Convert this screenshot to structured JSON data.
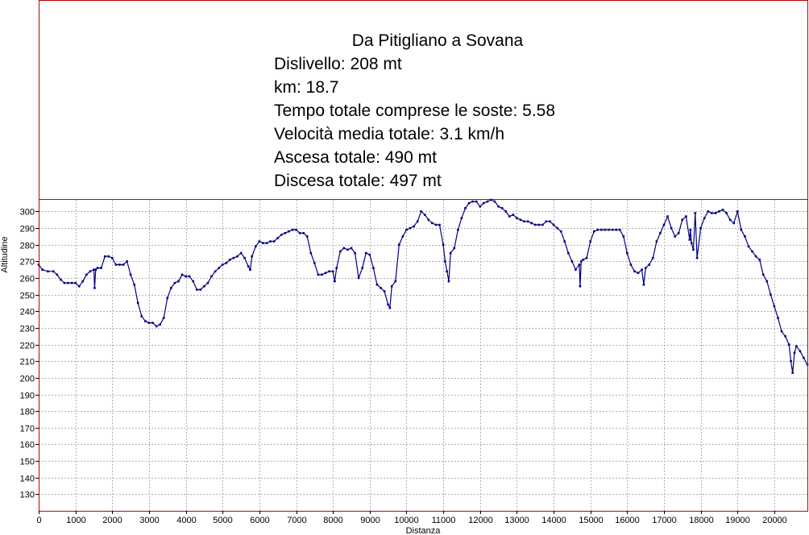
{
  "chart_data": {
    "type": "line",
    "title": "Da Pitigliano a Sovana",
    "stats": [
      "Dislivello: 208 mt",
      "km: 18.7",
      "Tempo totale comprese le soste: 5.58",
      "Velocità media totale: 3.1 km/h",
      "Ascesa totale: 490 mt",
      "Discesa totale: 497 mt"
    ],
    "xlabel": "Distanza",
    "ylabel": "Altitudine",
    "xlim": [
      0,
      20900
    ],
    "ylim": [
      120,
      307
    ],
    "xticks": [
      "0",
      "1000",
      "2000",
      "3000",
      "4000",
      "5000",
      "6000",
      "7000",
      "8000",
      "9000",
      "10000",
      "11000",
      "12000",
      "13000",
      "14000",
      "15000",
      "16000",
      "17000",
      "18000",
      "19000",
      "20000"
    ],
    "yticks": [
      "130",
      "140",
      "150",
      "160",
      "170",
      "180",
      "190",
      "200",
      "210",
      "220",
      "230",
      "240",
      "250",
      "260",
      "270",
      "280",
      "290",
      "300"
    ],
    "grid": true,
    "colors": {
      "line": "#000080",
      "frame": "#c00000",
      "grid": "#b0b0b0"
    },
    "series": [
      {
        "x": [
          0,
          100,
          250,
          400,
          500,
          600,
          700,
          800,
          900,
          1000,
          1100,
          1200,
          1300,
          1400,
          1500,
          1520,
          1550,
          1600,
          1700,
          1800,
          1900,
          2000,
          2100,
          2200,
          2300,
          2400,
          2500,
          2600,
          2700,
          2800,
          2900,
          3000,
          3100,
          3200,
          3300,
          3400,
          3500,
          3600,
          3700,
          3800,
          3900,
          4000,
          4100,
          4200,
          4300,
          4400,
          4500,
          4600,
          4700,
          4800,
          4900,
          5000,
          5100,
          5200,
          5300,
          5400,
          5500,
          5600,
          5700,
          5750,
          5800,
          5900,
          6000,
          6100,
          6200,
          6300,
          6400,
          6500,
          6600,
          6700,
          6800,
          6900,
          7000,
          7100,
          7200,
          7300,
          7400,
          7500,
          7600,
          7700,
          7800,
          7900,
          8000,
          8050,
          8100,
          8200,
          8300,
          8400,
          8500,
          8600,
          8700,
          8800,
          8900,
          9000,
          9100,
          9200,
          9300,
          9400,
          9500,
          9550,
          9600,
          9700,
          9800,
          9900,
          10000,
          10100,
          10200,
          10300,
          10400,
          10500,
          10600,
          10700,
          10800,
          10900,
          11000,
          11050,
          11100,
          11150,
          11200,
          11300,
          11400,
          11500,
          11600,
          11700,
          11800,
          11900,
          12000,
          12100,
          12200,
          12300,
          12400,
          12500,
          12600,
          12700,
          12800,
          12900,
          13000,
          13100,
          13200,
          13300,
          13400,
          13500,
          13600,
          13700,
          13800,
          13900,
          14000,
          14100,
          14200,
          14300,
          14400,
          14500,
          14600,
          14700,
          14720,
          14750,
          14800,
          14900,
          15000,
          15100,
          15200,
          15300,
          15400,
          15500,
          15600,
          15700,
          15800,
          15900,
          16000,
          16100,
          16200,
          16300,
          16400,
          16450,
          16500,
          16600,
          16700,
          16800,
          16900,
          17000,
          17100,
          17200,
          17300,
          17400,
          17500,
          17600,
          17700,
          17720,
          17750,
          17800,
          17850,
          17900,
          18000,
          18100,
          18200,
          18300,
          18400,
          18500,
          18600,
          18700,
          18800,
          18900,
          19000,
          19100,
          19200,
          19300,
          19400,
          19500,
          19600,
          19700,
          19800,
          19900,
          20000,
          20100,
          20200,
          20300,
          20400,
          20450,
          20500,
          20550,
          20600,
          20700,
          20800,
          20900
        ],
        "values": [
          268,
          265,
          264,
          264,
          262,
          259,
          257,
          257,
          257,
          257,
          255,
          258,
          262,
          264,
          265,
          254,
          265,
          266,
          266,
          273,
          273,
          272,
          268,
          268,
          268,
          270,
          262,
          256,
          245,
          237,
          234,
          233,
          233,
          231,
          232,
          236,
          248,
          254,
          257,
          258,
          262,
          261,
          261,
          258,
          253,
          253,
          255,
          257,
          261,
          264,
          266,
          268,
          269,
          271,
          272,
          273,
          275,
          272,
          267,
          265,
          273,
          279,
          282,
          281,
          281,
          282,
          282,
          284,
          286,
          287,
          288,
          289,
          289,
          287,
          287,
          285,
          275,
          269,
          262,
          262,
          263,
          264,
          264,
          258,
          266,
          276,
          278,
          277,
          278,
          275,
          260,
          266,
          275,
          274,
          266,
          256,
          254,
          252,
          244,
          242,
          255,
          258,
          280,
          285,
          289,
          290,
          291,
          294,
          300,
          298,
          295,
          293,
          292,
          292,
          280,
          270,
          264,
          258,
          275,
          278,
          289,
          296,
          302,
          305,
          306,
          306,
          303,
          305,
          306,
          307,
          306,
          303,
          302,
          300,
          297,
          298,
          296,
          295,
          294,
          294,
          293,
          292,
          292,
          292,
          294,
          294,
          292,
          290,
          288,
          282,
          275,
          270,
          265,
          268,
          255,
          270,
          271,
          272,
          282,
          288,
          289,
          289,
          289,
          289,
          289,
          289,
          289,
          285,
          275,
          268,
          264,
          263,
          265,
          256,
          266,
          268,
          272,
          282,
          287,
          292,
          297,
          290,
          285,
          287,
          295,
          297,
          283,
          289,
          281,
          277,
          299,
          272,
          290,
          296,
          300,
          299,
          299,
          300,
          301,
          299,
          295,
          293,
          300,
          289,
          285,
          279,
          276,
          273,
          271,
          262,
          258,
          250,
          243,
          236,
          228,
          225,
          220,
          210,
          203,
          215,
          219,
          216,
          212,
          208
        ]
      }
    ]
  }
}
